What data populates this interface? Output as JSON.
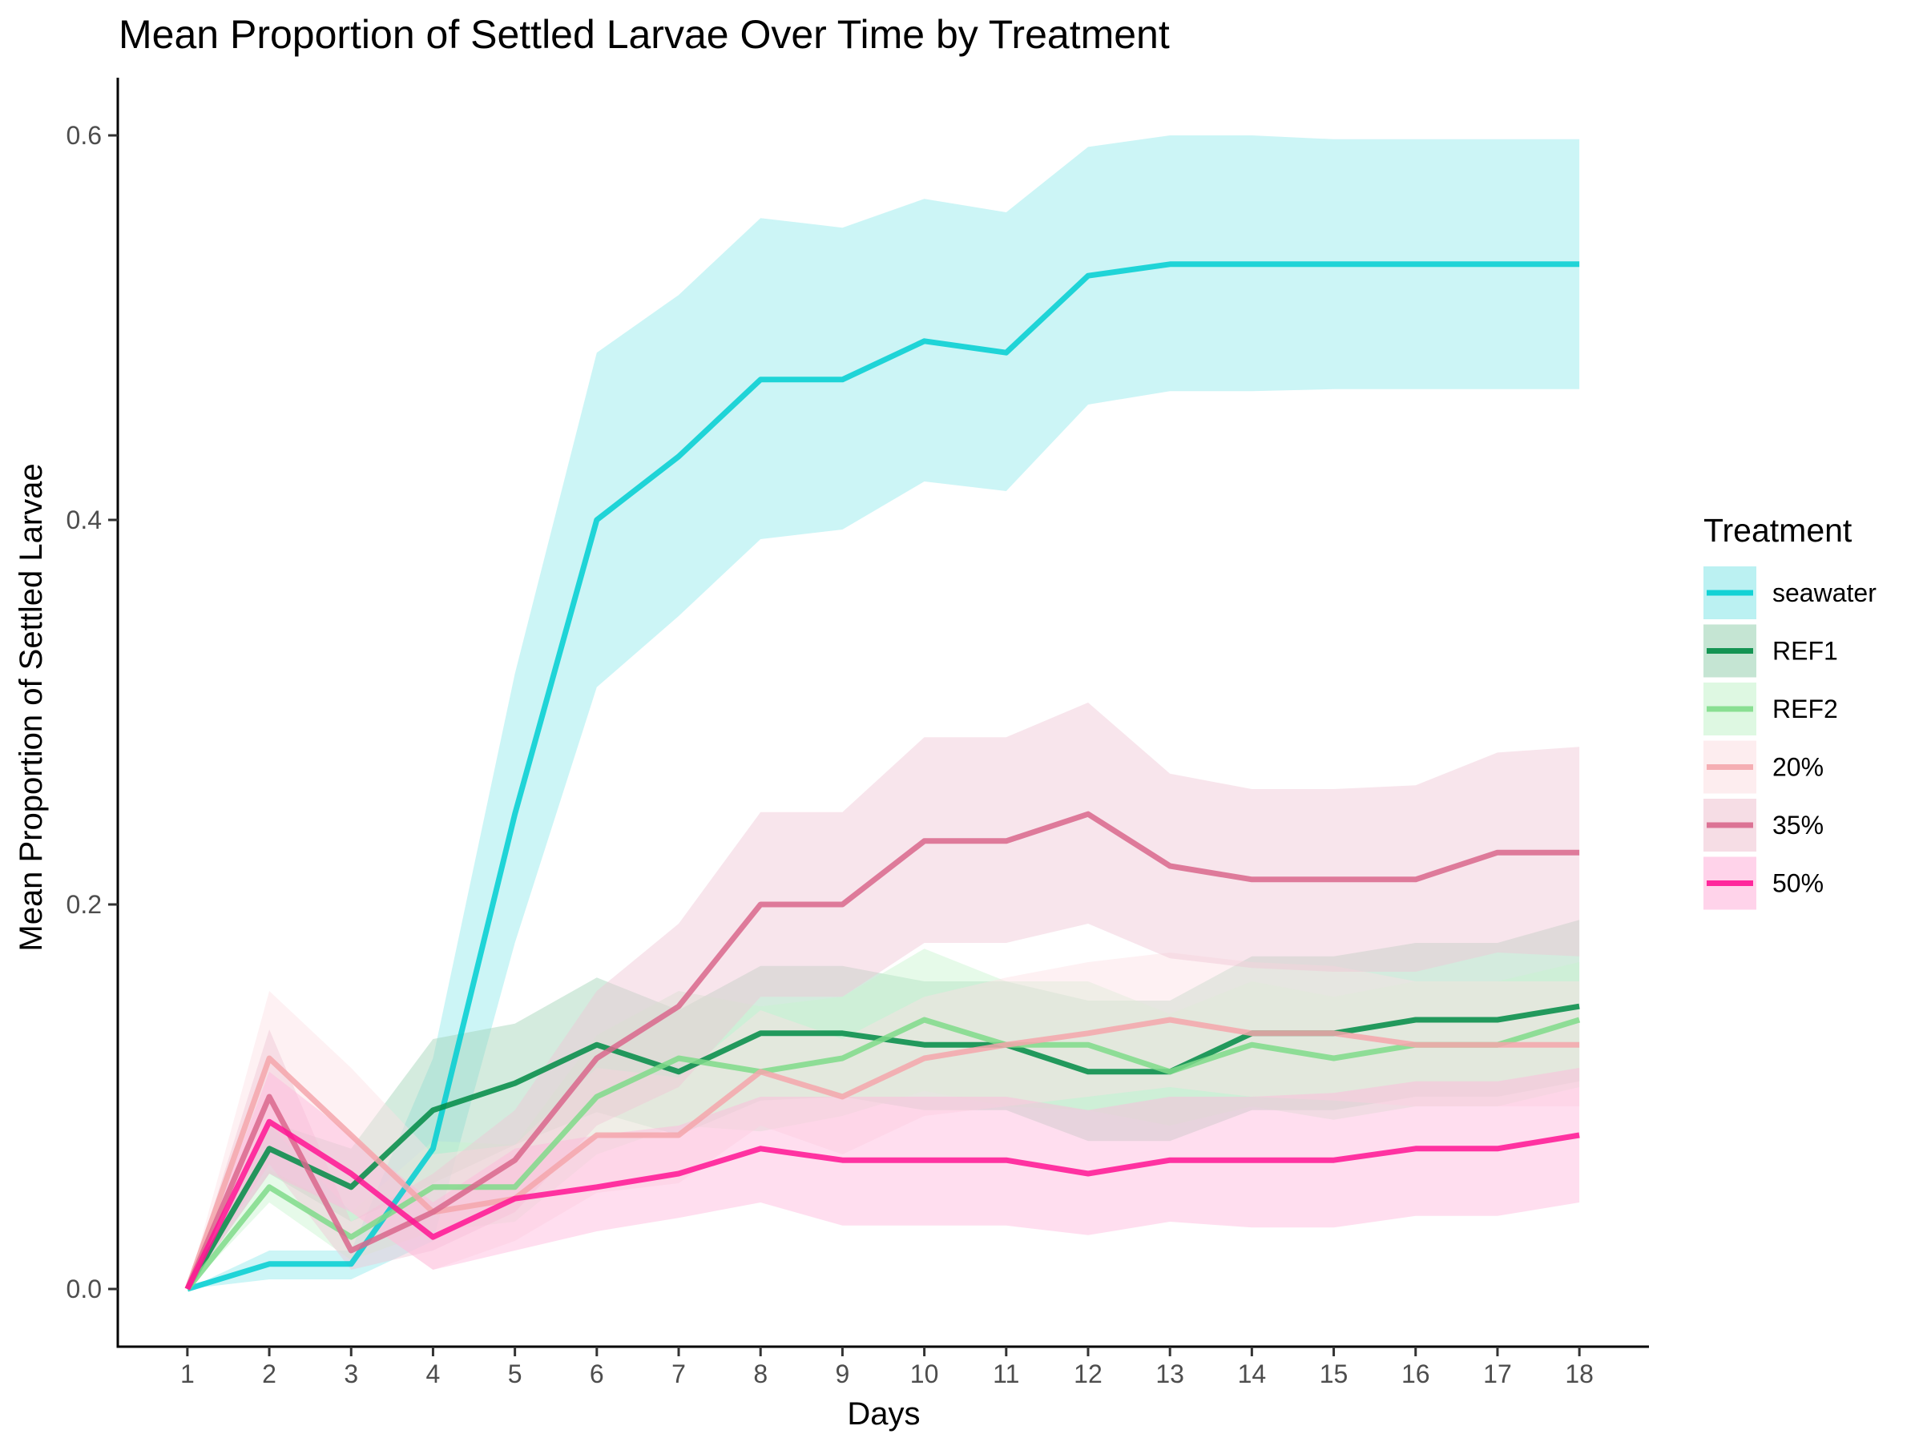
{
  "chart_data": {
    "type": "line",
    "title": "Mean Proportion of Settled Larvae Over Time by Treatment",
    "xlabel": "Days",
    "ylabel": "Mean Proportion of Settled Larvae",
    "x": [
      1,
      2,
      3,
      4,
      5,
      6,
      7,
      8,
      9,
      10,
      11,
      12,
      13,
      14,
      15,
      16,
      17,
      18
    ],
    "xlim": [
      0.15,
      18.85
    ],
    "ylim": [
      -0.03,
      0.63
    ],
    "yticks": [
      0.0,
      0.2,
      0.4,
      0.6
    ],
    "ytick_labels": [
      "0.0",
      "0.2",
      "0.4",
      "0.6"
    ],
    "grid": false,
    "legend": {
      "title": "Treatment",
      "position": "right"
    },
    "series": [
      {
        "name": "seawater",
        "color": "#00CED1",
        "fill_color": "#8EE8EA",
        "values": [
          0.0,
          0.013,
          0.013,
          0.073,
          0.247,
          0.4,
          0.433,
          0.473,
          0.473,
          0.493,
          0.487,
          0.527,
          0.533,
          0.533,
          0.533,
          0.533,
          0.533,
          0.533
        ],
        "lower": [
          0.0,
          0.005,
          0.005,
          0.025,
          0.18,
          0.313,
          0.35,
          0.39,
          0.395,
          0.42,
          0.415,
          0.46,
          0.467,
          0.467,
          0.468,
          0.468,
          0.468,
          0.468
        ],
        "upper": [
          0.0,
          0.02,
          0.02,
          0.12,
          0.32,
          0.487,
          0.517,
          0.557,
          0.552,
          0.567,
          0.56,
          0.594,
          0.6,
          0.6,
          0.598,
          0.598,
          0.598,
          0.598
        ]
      },
      {
        "name": "REF1",
        "color": "#008B45",
        "fill_color": "#9FD3B5",
        "values": [
          0.0,
          0.073,
          0.053,
          0.093,
          0.107,
          0.127,
          0.113,
          0.133,
          0.133,
          0.127,
          0.127,
          0.113,
          0.113,
          0.133,
          0.133,
          0.14,
          0.14,
          0.147
        ],
        "lower": [
          0.0,
          0.06,
          0.035,
          0.055,
          0.075,
          0.092,
          0.08,
          0.098,
          0.1,
          0.093,
          0.093,
          0.077,
          0.077,
          0.093,
          0.093,
          0.1,
          0.1,
          0.108
        ],
        "upper": [
          0.0,
          0.087,
          0.073,
          0.13,
          0.138,
          0.162,
          0.145,
          0.168,
          0.168,
          0.16,
          0.16,
          0.15,
          0.15,
          0.173,
          0.173,
          0.18,
          0.18,
          0.192
        ]
      },
      {
        "name": "REF2",
        "color": "#7FDB8A",
        "fill_color": "#C8F3CE",
        "values": [
          0.0,
          0.053,
          0.027,
          0.053,
          0.053,
          0.1,
          0.12,
          0.113,
          0.12,
          0.14,
          0.127,
          0.127,
          0.113,
          0.127,
          0.12,
          0.127,
          0.127,
          0.14
        ],
        "lower": [
          0.0,
          0.045,
          0.015,
          0.03,
          0.035,
          0.07,
          0.085,
          0.082,
          0.09,
          0.103,
          0.095,
          0.093,
          0.085,
          0.095,
          0.088,
          0.095,
          0.095,
          0.105
        ],
        "upper": [
          0.0,
          0.062,
          0.04,
          0.077,
          0.075,
          0.132,
          0.155,
          0.147,
          0.152,
          0.177,
          0.16,
          0.16,
          0.143,
          0.16,
          0.152,
          0.16,
          0.16,
          0.17
        ]
      },
      {
        "name": "20%",
        "color": "#F4A6AC",
        "fill_color": "#FCE1E5",
        "values": [
          0.0,
          0.12,
          0.08,
          0.04,
          0.047,
          0.08,
          0.08,
          0.113,
          0.1,
          0.12,
          0.127,
          0.133,
          0.14,
          0.133,
          0.133,
          0.127,
          0.127,
          0.127
        ],
        "lower": [
          0.0,
          0.085,
          0.04,
          0.01,
          0.025,
          0.05,
          0.055,
          0.085,
          0.07,
          0.09,
          0.095,
          0.1,
          0.105,
          0.1,
          0.098,
          0.095,
          0.095,
          0.095
        ],
        "upper": [
          0.0,
          0.155,
          0.115,
          0.07,
          0.075,
          0.115,
          0.11,
          0.145,
          0.13,
          0.152,
          0.162,
          0.17,
          0.175,
          0.17,
          0.168,
          0.16,
          0.16,
          0.16
        ]
      },
      {
        "name": "35%",
        "color": "#D9678C",
        "fill_color": "#F0C6D4",
        "values": [
          0.0,
          0.1,
          0.02,
          0.04,
          0.067,
          0.12,
          0.147,
          0.2,
          0.2,
          0.233,
          0.233,
          0.247,
          0.22,
          0.213,
          0.213,
          0.213,
          0.227,
          0.227
        ],
        "lower": [
          0.0,
          0.065,
          0.01,
          0.02,
          0.04,
          0.085,
          0.105,
          0.152,
          0.152,
          0.18,
          0.18,
          0.19,
          0.172,
          0.167,
          0.165,
          0.165,
          0.175,
          0.173
        ],
        "upper": [
          0.0,
          0.135,
          0.035,
          0.06,
          0.093,
          0.155,
          0.19,
          0.248,
          0.248,
          0.287,
          0.287,
          0.305,
          0.268,
          0.26,
          0.26,
          0.262,
          0.279,
          0.282
        ]
      },
      {
        "name": "50%",
        "color": "#FF1493",
        "fill_color": "#FFB6DC",
        "values": [
          0.0,
          0.087,
          0.06,
          0.027,
          0.047,
          0.053,
          0.06,
          0.073,
          0.067,
          0.067,
          0.067,
          0.06,
          0.067,
          0.067,
          0.067,
          0.073,
          0.073,
          0.08
        ],
        "lower": [
          0.0,
          0.06,
          0.04,
          0.01,
          0.02,
          0.03,
          0.037,
          0.045,
          0.033,
          0.033,
          0.033,
          0.028,
          0.035,
          0.032,
          0.032,
          0.038,
          0.038,
          0.045
        ],
        "upper": [
          0.0,
          0.113,
          0.08,
          0.045,
          0.073,
          0.08,
          0.085,
          0.1,
          0.1,
          0.1,
          0.1,
          0.093,
          0.1,
          0.1,
          0.102,
          0.108,
          0.108,
          0.115
        ]
      }
    ]
  }
}
